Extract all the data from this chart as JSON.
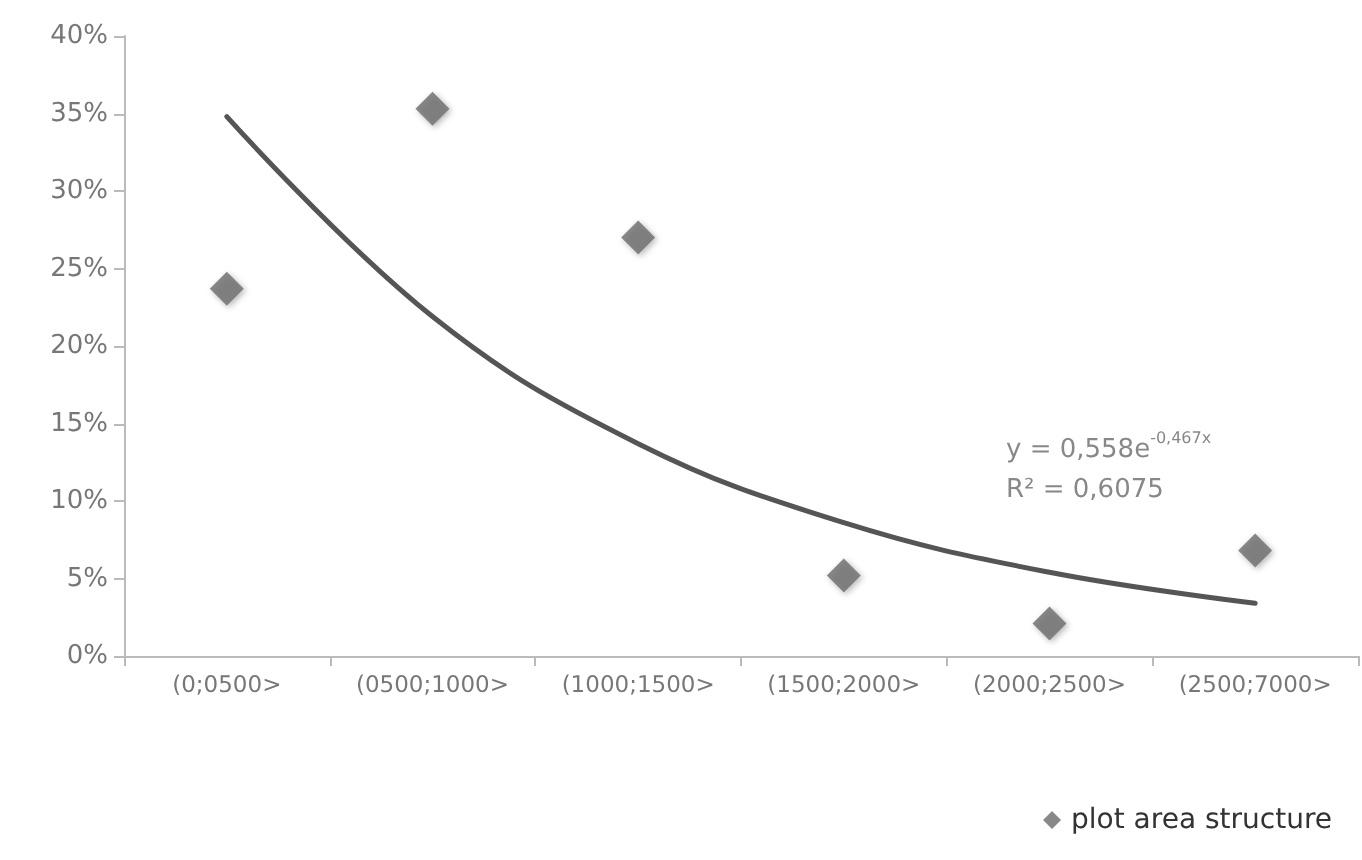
{
  "chart_data": {
    "type": "scatter",
    "categories": [
      "(0;0500>",
      "(0500;1000>",
      "(1000;1500>",
      "(1500;2000>",
      "(2000;2500>",
      "(2500;7000>"
    ],
    "series": [
      {
        "name": "plot area structure",
        "color": "#6a6a6a",
        "marker": "diamond",
        "values": [
          23.7,
          35.3,
          27.0,
          5.2,
          2.1,
          6.8
        ]
      },
      {
        "type": "line",
        "color": "#555555",
        "marker": "none",
        "line_style": "solid",
        "x": [
          "(0;0500>",
          "(0500;1000>",
          "(1000;1500>",
          "(1500;2000>",
          "(2000;2500>",
          "(2500;7000>"
        ],
        "values": [
          34.8,
          21.9,
          13.7,
          8.6,
          5.4,
          3.4
        ]
      }
    ],
    "ylim": [
      0,
      40
    ],
    "yticks": [
      {
        "value": 0,
        "label": "0%"
      },
      {
        "value": 5,
        "label": "5%"
      },
      {
        "value": 10,
        "label": "10%"
      },
      {
        "value": 15,
        "label": "15%"
      },
      {
        "value": 20,
        "label": "20%"
      },
      {
        "value": 25,
        "label": "25%"
      },
      {
        "value": 30,
        "label": "30%"
      },
      {
        "value": 35,
        "label": "35%"
      },
      {
        "value": 40,
        "label": "40%"
      }
    ],
    "annotations": [
      "y = 0,558e$^{-0,467x}$",
      "R² = 0,6075"
    ],
    "grid": false,
    "legend": "bottom right"
  }
}
